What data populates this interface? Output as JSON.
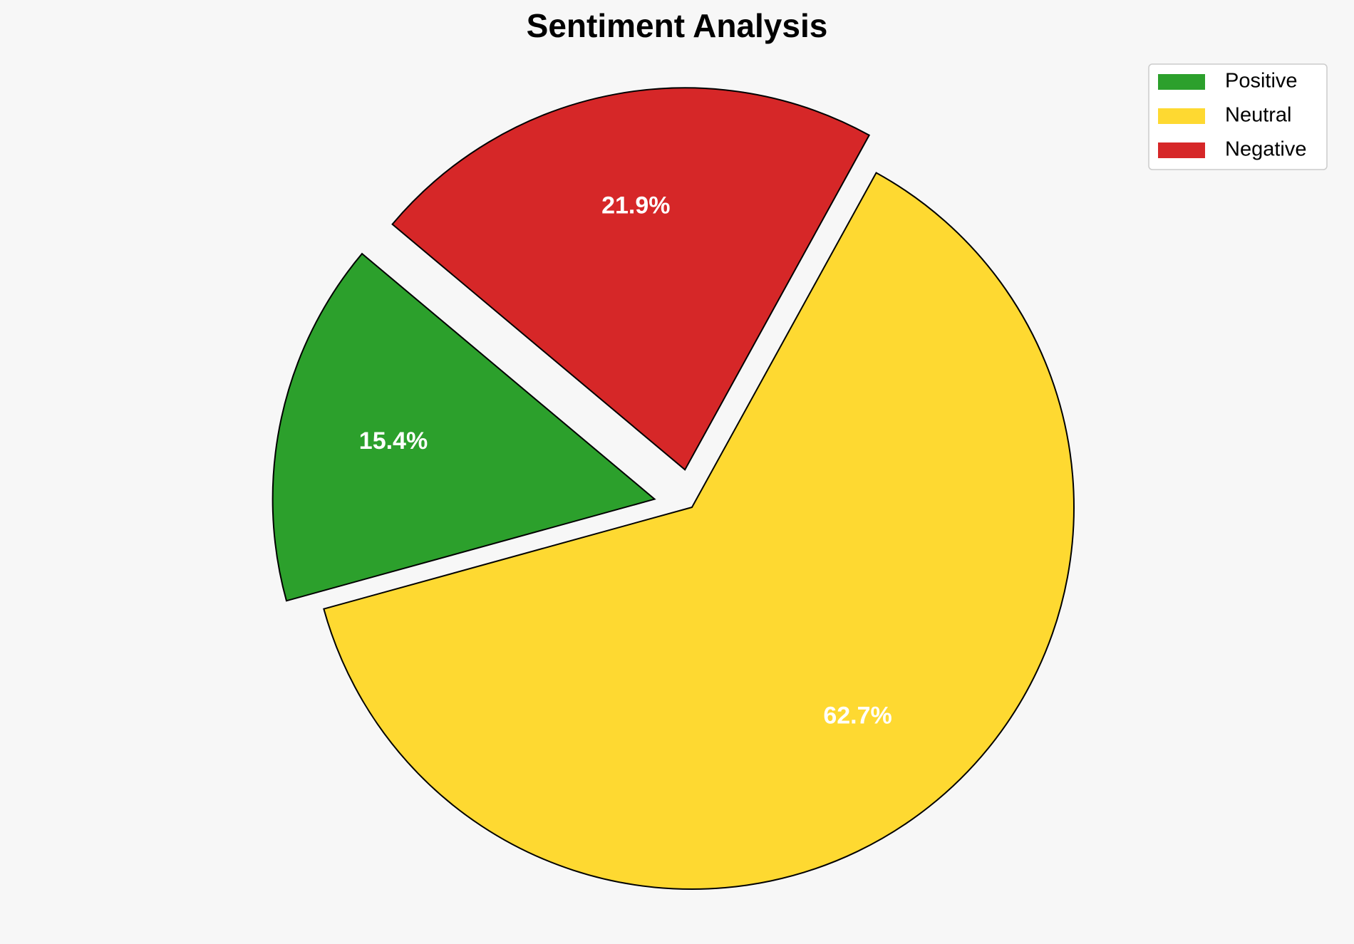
{
  "chart_data": {
    "type": "pie",
    "title": "Sentiment Analysis",
    "categories": [
      "Positive",
      "Neutral",
      "Negative"
    ],
    "values": [
      15.4,
      62.7,
      21.9
    ],
    "value_labels": [
      "15.4%",
      "62.7%",
      "21.9%"
    ],
    "colors": [
      "#2ca02c",
      "#fed931",
      "#d62728"
    ],
    "explode": [
      0.1,
      0,
      0.1
    ],
    "startangle": 140,
    "legend": "upper right"
  }
}
